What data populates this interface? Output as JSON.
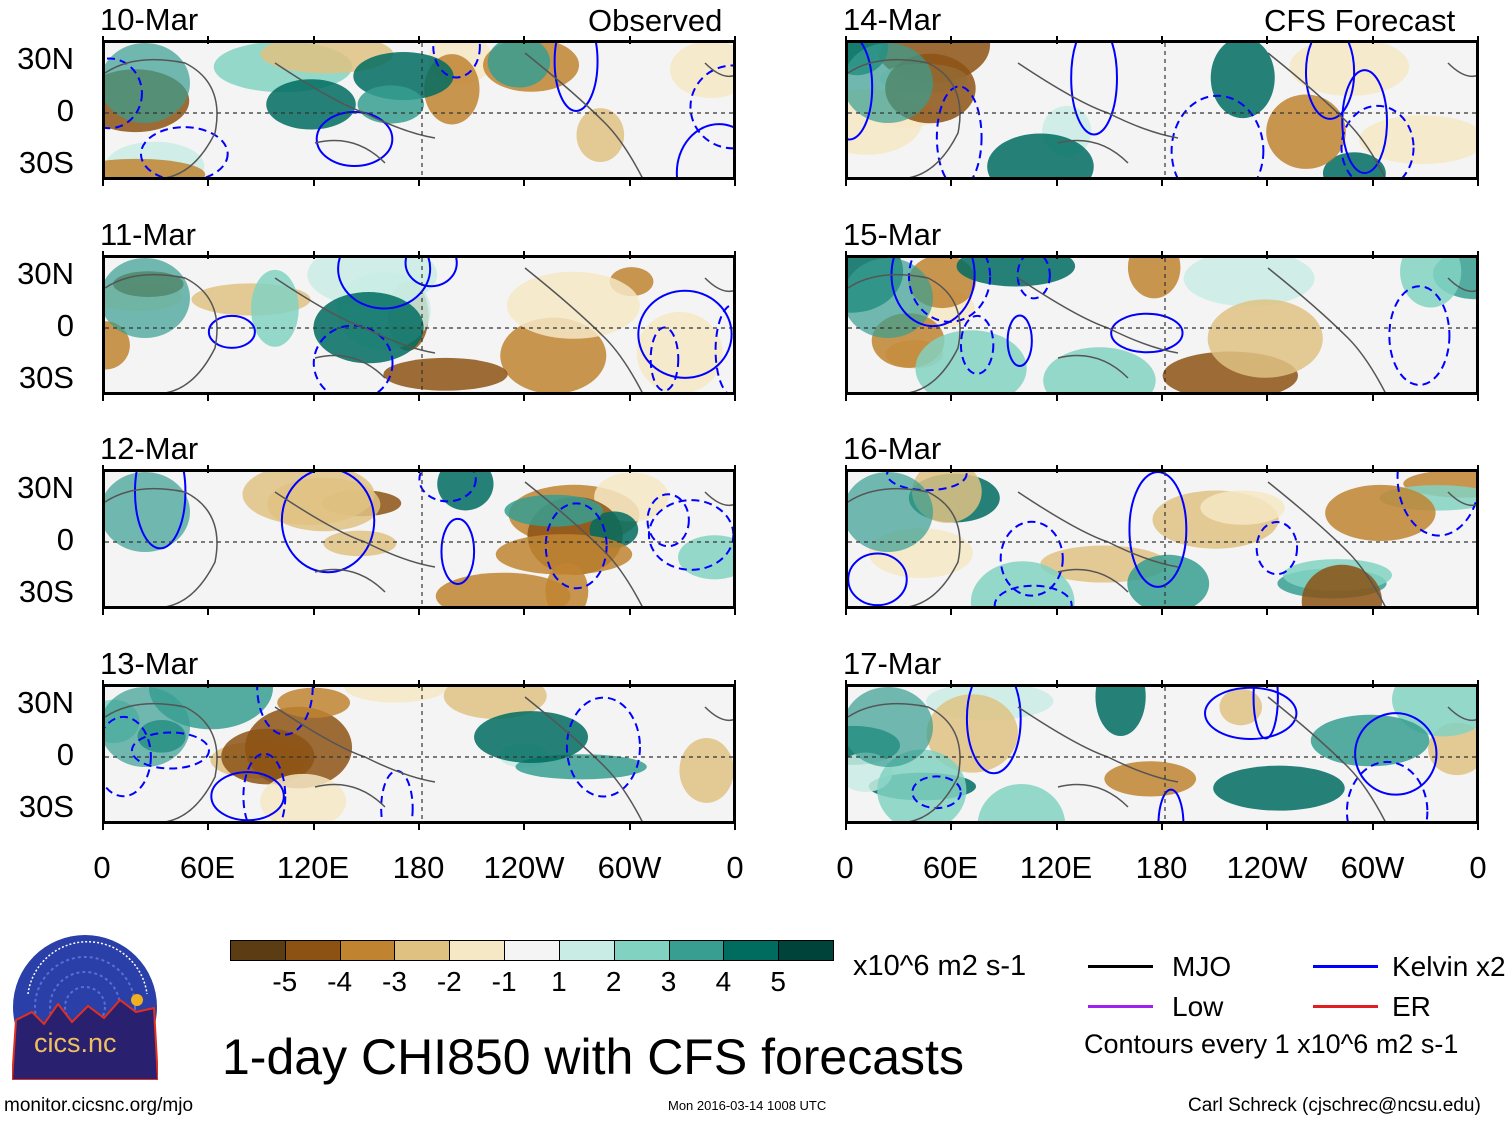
{
  "header": {
    "left_label": "Observed",
    "right_label": "CFS Forecast"
  },
  "panels_left": [
    {
      "date": "10-Mar"
    },
    {
      "date": "11-Mar"
    },
    {
      "date": "12-Mar"
    },
    {
      "date": "13-Mar"
    }
  ],
  "panels_right": [
    {
      "date": "14-Mar"
    },
    {
      "date": "15-Mar"
    },
    {
      "date": "16-Mar"
    },
    {
      "date": "17-Mar"
    }
  ],
  "y_ticks": [
    "30N",
    "0",
    "30S"
  ],
  "x_ticks": [
    "0",
    "60E",
    "120E",
    "180",
    "120W",
    "60W",
    "0"
  ],
  "colorbar": {
    "colors": [
      "#5c3c12",
      "#8c5214",
      "#c08431",
      "#dfc282",
      "#f6e8c4",
      "#f4f4f4",
      "#c9ece4",
      "#82d2c2",
      "#379e91",
      "#006c60",
      "#00433a"
    ],
    "labels": [
      "-5",
      "-4",
      "-3",
      "-2",
      "-1",
      "1",
      "2",
      "3",
      "4",
      "5"
    ],
    "units": "x10^6 m2 s-1"
  },
  "legend": [
    {
      "label": "MJO",
      "color": "#000000"
    },
    {
      "label": "Kelvin x2",
      "color": "#0000ff"
    },
    {
      "label": "Low",
      "color": "#a020f0"
    },
    {
      "label": "ER",
      "color": "#e02020"
    }
  ],
  "contour_note": "Contours every 1 x10^6 m2 s-1",
  "title": "1-day CHI850 with CFS forecasts",
  "logo": {
    "text": "cics.nc",
    "ring_text": "Cooperative Institute for Climate and Satellites"
  },
  "footer": {
    "url": "monitor.cicsnc.org/mjo",
    "timestamp": "Mon 2016-03-14 1008 UTC",
    "author": "Carl Schreck (cjschrec@ncsu.edu)"
  }
}
